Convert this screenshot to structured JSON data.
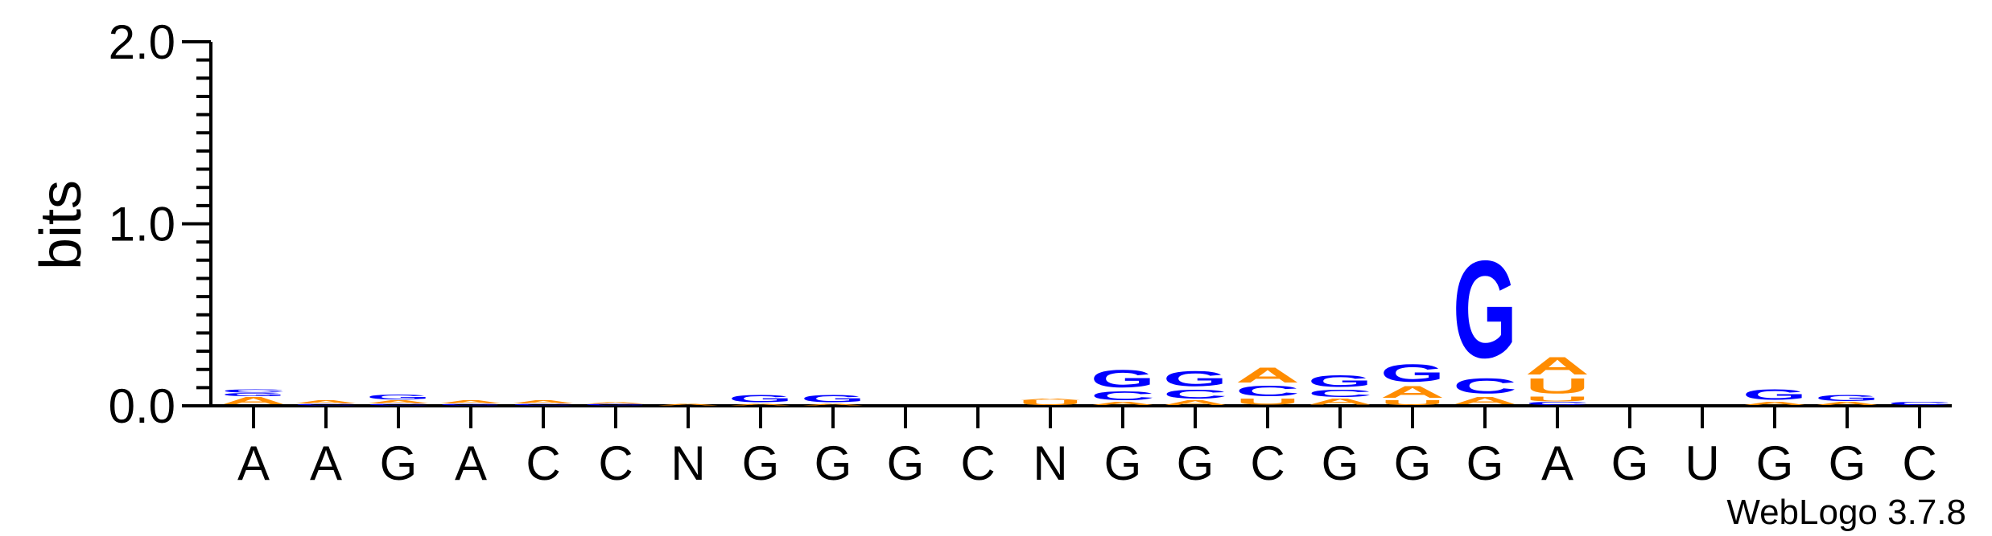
{
  "chart_data": {
    "type": "sequence_logo",
    "ylabel": "bits",
    "ylim": [
      0,
      2.0
    ],
    "yticks": [
      "0.0",
      "1.0",
      "2.0"
    ],
    "credit": "WebLogo 3.7.8",
    "colors": {
      "A": "#ff8c00",
      "C": "#0000ff",
      "G": "#0000ff",
      "U": "#ff8c00",
      "N": "#000000"
    },
    "positions": [
      {
        "label": "A",
        "letters": [
          {
            "l": "A",
            "h": 0.05
          },
          {
            "l": "G",
            "h": 0.02
          },
          {
            "l": "C",
            "h": 0.02
          }
        ]
      },
      {
        "label": "A",
        "letters": [
          {
            "l": "C",
            "h": 0.01
          },
          {
            "l": "A",
            "h": 0.02
          }
        ]
      },
      {
        "label": "G",
        "letters": [
          {
            "l": "C",
            "h": 0.01
          },
          {
            "l": "A",
            "h": 0.02
          },
          {
            "l": "G",
            "h": 0.03
          }
        ]
      },
      {
        "label": "A",
        "letters": [
          {
            "l": "G",
            "h": 0.01
          },
          {
            "l": "A",
            "h": 0.02
          }
        ]
      },
      {
        "label": "C",
        "letters": [
          {
            "l": "C",
            "h": 0.01
          },
          {
            "l": "A",
            "h": 0.02
          }
        ]
      },
      {
        "label": "C",
        "letters": [
          {
            "l": "G",
            "h": 0.01
          },
          {
            "l": "A",
            "h": 0.01
          }
        ]
      },
      {
        "label": "N",
        "letters": [
          {
            "l": "A",
            "h": 0.01
          }
        ]
      },
      {
        "label": "G",
        "letters": [
          {
            "l": "A",
            "h": 0.01
          },
          {
            "l": "G",
            "h": 0.05
          }
        ]
      },
      {
        "label": "G",
        "letters": [
          {
            "l": "A",
            "h": 0.01
          },
          {
            "l": "G",
            "h": 0.05
          }
        ]
      },
      {
        "label": "G",
        "letters": []
      },
      {
        "label": "C",
        "letters": []
      },
      {
        "label": "N",
        "letters": [
          {
            "l": "U",
            "h": 0.03
          },
          {
            "l": "A",
            "h": 0.01
          }
        ]
      },
      {
        "label": "G",
        "letters": [
          {
            "l": "A",
            "h": 0.02
          },
          {
            "l": "C",
            "h": 0.06
          },
          {
            "l": "G",
            "h": 0.12
          }
        ]
      },
      {
        "label": "G",
        "letters": [
          {
            "l": "A",
            "h": 0.03
          },
          {
            "l": "C",
            "h": 0.06
          },
          {
            "l": "G",
            "h": 0.1
          }
        ]
      },
      {
        "label": "C",
        "letters": [
          {
            "l": "U",
            "h": 0.04
          },
          {
            "l": "C",
            "h": 0.07
          },
          {
            "l": "A",
            "h": 0.1
          }
        ]
      },
      {
        "label": "G",
        "letters": [
          {
            "l": "A",
            "h": 0.04
          },
          {
            "l": "C",
            "h": 0.05
          },
          {
            "l": "G",
            "h": 0.08
          }
        ]
      },
      {
        "label": "G",
        "letters": [
          {
            "l": "U",
            "h": 0.03
          },
          {
            "l": "A",
            "h": 0.08
          },
          {
            "l": "G",
            "h": 0.12
          }
        ]
      },
      {
        "label": "G",
        "letters": [
          {
            "l": "A",
            "h": 0.05
          },
          {
            "l": "C",
            "h": 0.1
          },
          {
            "l": "G",
            "h": 0.65
          }
        ]
      },
      {
        "label": "A",
        "letters": [
          {
            "l": "C",
            "h": 0.02
          },
          {
            "l": "U",
            "h": 0.03
          },
          {
            "l": "U",
            "h": 0.1
          },
          {
            "l": "A",
            "h": 0.12
          }
        ]
      },
      {
        "label": "G",
        "letters": []
      },
      {
        "label": "U",
        "letters": []
      },
      {
        "label": "G",
        "letters": [
          {
            "l": "A",
            "h": 0.02
          },
          {
            "l": "G",
            "h": 0.07
          }
        ]
      },
      {
        "label": "G",
        "letters": [
          {
            "l": "A",
            "h": 0.02
          },
          {
            "l": "G",
            "h": 0.04
          }
        ]
      },
      {
        "label": "C",
        "letters": [
          {
            "l": "C",
            "h": 0.02
          }
        ]
      }
    ]
  }
}
